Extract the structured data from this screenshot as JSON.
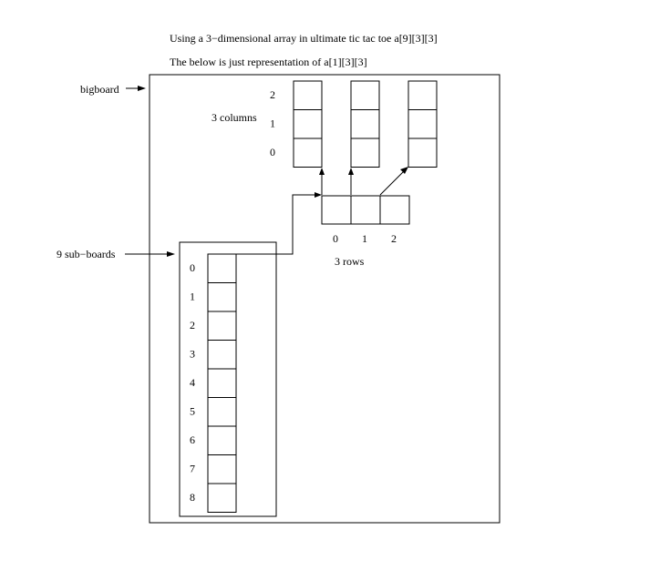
{
  "title": "Using a 3−dimensional array in ultimate tic tac toe a[9][3][3]",
  "subtitle": "The below is just representation of a[1][3][3]",
  "labels": {
    "bigboard": "bigboard",
    "sub_boards": "9 sub−boards",
    "columns": "3 columns",
    "rows": "3 rows"
  },
  "sub_board_indices": [
    "0",
    "1",
    "2",
    "3",
    "4",
    "5",
    "6",
    "7",
    "8"
  ],
  "row_indices": [
    "0",
    "1",
    "2"
  ],
  "column_indices": [
    "2",
    "1",
    "0"
  ]
}
